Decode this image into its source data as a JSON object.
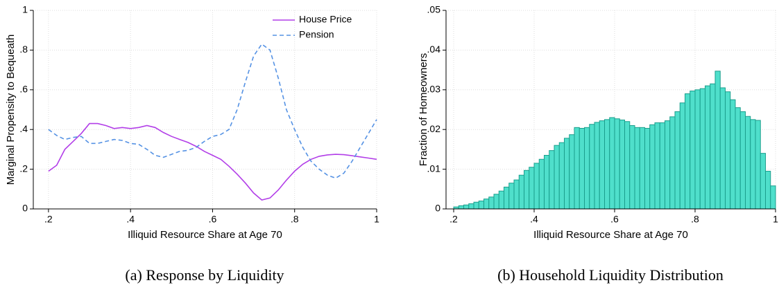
{
  "chart_data": [
    {
      "type": "line",
      "caption": "(a) Response by Liquidity",
      "xlabel": "Illiquid Resource Share  at Age 70",
      "ylabel": "Marginal Propensity to Bequeath",
      "x": [
        0.2,
        0.22,
        0.24,
        0.26,
        0.28,
        0.3,
        0.32,
        0.34,
        0.36,
        0.38,
        0.4,
        0.42,
        0.44,
        0.46,
        0.48,
        0.5,
        0.52,
        0.54,
        0.56,
        0.58,
        0.6,
        0.62,
        0.64,
        0.66,
        0.68,
        0.7,
        0.72,
        0.74,
        0.76,
        0.78,
        0.8,
        0.82,
        0.84,
        0.86,
        0.88,
        0.9,
        0.92,
        0.94,
        0.96,
        0.98,
        1
      ],
      "series": [
        {
          "name": "House Price",
          "color": "#b23ee8",
          "line_style": "solid",
          "values": [
            0.19,
            0.22,
            0.3,
            0.34,
            0.38,
            0.43,
            0.43,
            0.42,
            0.405,
            0.41,
            0.405,
            0.41,
            0.42,
            0.41,
            0.385,
            0.365,
            0.35,
            0.335,
            0.315,
            0.29,
            0.27,
            0.25,
            0.215,
            0.175,
            0.13,
            0.08,
            0.045,
            0.055,
            0.095,
            0.145,
            0.19,
            0.225,
            0.25,
            0.265,
            0.272,
            0.275,
            0.273,
            0.268,
            0.262,
            0.256,
            0.25
          ]
        },
        {
          "name": "Pension",
          "color": "#5592e4",
          "line_style": "dashed",
          "values": [
            0.4,
            0.37,
            0.35,
            0.36,
            0.365,
            0.33,
            0.33,
            0.34,
            0.35,
            0.345,
            0.33,
            0.325,
            0.3,
            0.27,
            0.26,
            0.275,
            0.29,
            0.295,
            0.31,
            0.34,
            0.365,
            0.375,
            0.4,
            0.5,
            0.64,
            0.77,
            0.83,
            0.8,
            0.66,
            0.5,
            0.4,
            0.31,
            0.24,
            0.2,
            0.17,
            0.155,
            0.18,
            0.24,
            0.31,
            0.38,
            0.45
          ]
        }
      ],
      "xlim": [
        0.163,
        1
      ],
      "ylim": [
        0,
        1
      ],
      "xticks": [
        {
          "value": 0.2,
          "label": ".2"
        },
        {
          "value": 0.4,
          "label": ".4"
        },
        {
          "value": 0.6,
          "label": ".6"
        },
        {
          "value": 0.8,
          "label": ".8"
        },
        1
      ],
      "yticks": [
        0,
        {
          "value": 0.2,
          "label": ".2"
        },
        {
          "value": 0.4,
          "label": ".4"
        },
        {
          "value": 0.6,
          "label": ".6"
        },
        {
          "value": 0.8,
          "label": ".8"
        },
        1
      ],
      "grid": true,
      "legend": "top-right"
    },
    {
      "type": "histogram",
      "caption": "(b) Household Liquidity Distribution",
      "xlabel": "Illiquid Resource Share at Age 70",
      "ylabel": "Fraction of Homeowners",
      "color": "#4fdfcb",
      "edge_color": "#1a9e8c",
      "bins": [
        0.2,
        0.2125,
        0.225,
        0.2375,
        0.25,
        0.2625,
        0.275,
        0.2875,
        0.3,
        0.3125,
        0.325,
        0.3375,
        0.35,
        0.3625,
        0.375,
        0.3875,
        0.4,
        0.4125,
        0.425,
        0.4375,
        0.45,
        0.4625,
        0.475,
        0.4875,
        0.5,
        0.5125,
        0.525,
        0.5375,
        0.55,
        0.5625,
        0.575,
        0.5875,
        0.6,
        0.6125,
        0.625,
        0.6375,
        0.65,
        0.6625,
        0.675,
        0.6875,
        0.7,
        0.7125,
        0.725,
        0.7375,
        0.75,
        0.7625,
        0.775,
        0.7875,
        0.8,
        0.8125,
        0.825,
        0.8375,
        0.85,
        0.8625,
        0.875,
        0.8875,
        0.9,
        0.9125,
        0.925,
        0.9375,
        0.95,
        0.9625,
        0.975,
        0.9875,
        1
      ],
      "values": [
        0.0005,
        0.0008,
        0.001,
        0.0013,
        0.0017,
        0.002,
        0.0025,
        0.003,
        0.0037,
        0.0045,
        0.0055,
        0.0065,
        0.0073,
        0.0085,
        0.0097,
        0.0105,
        0.0115,
        0.0125,
        0.0135,
        0.0147,
        0.016,
        0.0167,
        0.0178,
        0.0187,
        0.0205,
        0.0203,
        0.0205,
        0.0213,
        0.0218,
        0.0222,
        0.0225,
        0.023,
        0.0227,
        0.0224,
        0.022,
        0.021,
        0.0205,
        0.0205,
        0.0203,
        0.0212,
        0.0217,
        0.0217,
        0.0222,
        0.0232,
        0.0245,
        0.0267,
        0.029,
        0.0297,
        0.03,
        0.0303,
        0.031,
        0.0315,
        0.0347,
        0.0305,
        0.0295,
        0.0275,
        0.0255,
        0.0245,
        0.0233,
        0.0225,
        0.0223,
        0.014,
        0.0095,
        0.0058
      ],
      "xlim": [
        0.181,
        1
      ],
      "ylim": [
        0,
        0.05
      ],
      "xticks": [
        {
          "value": 0.2,
          "label": ".2"
        },
        {
          "value": 0.4,
          "label": ".4"
        },
        {
          "value": 0.6,
          "label": ".6"
        },
        {
          "value": 0.8,
          "label": ".8"
        },
        1
      ],
      "yticks": [
        0,
        {
          "value": 0.01,
          "label": ".01"
        },
        {
          "value": 0.02,
          "label": ".02"
        },
        {
          "value": 0.03,
          "label": ".03"
        },
        {
          "value": 0.04,
          "label": ".04"
        },
        {
          "value": 0.05,
          "label": ".05"
        }
      ],
      "grid": true
    }
  ]
}
